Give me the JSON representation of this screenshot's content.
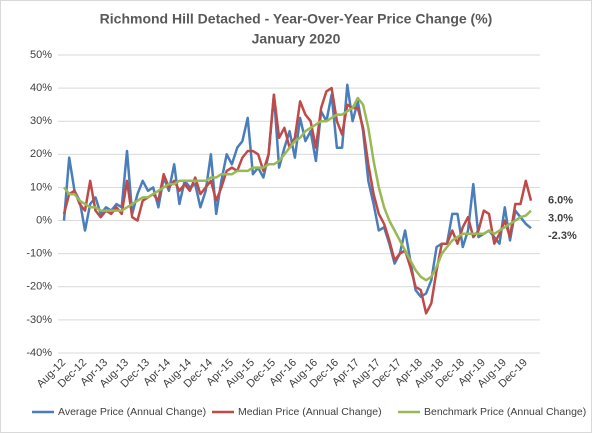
{
  "chart_data": {
    "type": "line",
    "title": "Richmond Hill Detached - Year-Over-Year Price Change (%)",
    "subtitle": "January 2020",
    "categories": [
      "Aug-12",
      null,
      null,
      null,
      "Dec-12",
      null,
      null,
      null,
      "Apr-13",
      null,
      null,
      null,
      "Aug-13",
      null,
      null,
      null,
      "Dec-13",
      null,
      null,
      null,
      "Apr-14",
      null,
      null,
      null,
      "Aug-14",
      null,
      null,
      null,
      "Dec-14",
      null,
      null,
      null,
      "Apr-15",
      null,
      null,
      null,
      "Aug-15",
      null,
      null,
      null,
      "Dec-15",
      null,
      null,
      null,
      "Apr-16",
      null,
      null,
      null,
      "Aug-16",
      null,
      null,
      null,
      "Dec-16",
      null,
      null,
      null,
      "Apr-17",
      null,
      null,
      null,
      "Aug-17",
      null,
      null,
      null,
      "Dec-17",
      null,
      null,
      null,
      "Apr-18",
      null,
      null,
      null,
      "Aug-18",
      null,
      null,
      null,
      "Dec-18",
      null,
      null,
      null,
      "Apr-19",
      null,
      null,
      null,
      "Aug-19",
      null,
      null,
      null,
      "Dec-19",
      null
    ],
    "series": [
      {
        "name": "Average Price (Annual Change)",
        "color": "#4a7ebb",
        "values": [
          0,
          19,
          9,
          6,
          -3,
          5,
          7,
          2,
          4,
          3,
          5,
          4,
          21,
          2,
          8,
          12,
          9,
          10,
          4,
          13,
          9,
          17,
          5,
          12,
          10,
          11,
          4,
          9,
          20,
          2,
          12,
          20,
          17,
          22,
          24,
          31,
          14,
          16,
          13,
          20,
          38,
          16,
          22,
          27,
          19,
          31,
          24,
          27,
          18,
          33,
          30,
          38,
          22,
          22,
          41,
          30,
          36,
          27,
          12,
          5,
          -3,
          -2,
          -7,
          -13,
          -10,
          -3,
          -12,
          -21,
          -23,
          -22,
          -18,
          -8,
          -7,
          -7,
          2,
          2,
          -8,
          -3,
          11,
          -5,
          -4,
          -3,
          -5,
          -7,
          4,
          -6,
          3,
          1,
          -1,
          -2.3
        ],
        "value_labels": [
          null,
          null,
          null,
          null,
          null,
          null,
          null,
          null,
          null,
          null,
          null,
          null,
          null,
          null,
          null,
          null,
          null,
          null,
          null,
          null,
          null,
          null,
          null,
          null,
          null,
          null,
          null,
          null,
          null,
          null,
          null,
          null,
          null,
          null,
          null,
          null,
          null,
          null,
          null,
          null,
          null,
          null,
          null,
          null,
          null,
          null,
          null,
          null,
          null,
          null,
          null,
          null,
          null,
          null,
          null,
          null,
          null,
          null,
          null,
          null,
          null,
          null,
          null,
          null,
          null,
          null,
          null,
          null,
          null,
          null,
          null,
          null,
          null,
          null,
          null,
          null,
          null,
          null,
          null,
          null,
          null,
          null,
          null,
          null,
          null,
          null,
          null,
          null,
          null,
          "-2.3%"
        ]
      },
      {
        "name": "Median Price (Annual Change)",
        "color": "#be4b48",
        "values": [
          2,
          8,
          9,
          5,
          3,
          12,
          3,
          1,
          3,
          2,
          4,
          2,
          12,
          1,
          0,
          6,
          7,
          8,
          6,
          14,
          10,
          12,
          9,
          11,
          9,
          13,
          8,
          10,
          12,
          6,
          10,
          15,
          16,
          15,
          19,
          21,
          21,
          20,
          15,
          20,
          38,
          25,
          28,
          22,
          25,
          36,
          32,
          30,
          22,
          34,
          39,
          40,
          30,
          26,
          35,
          34,
          34,
          28,
          17,
          8,
          2,
          -1,
          -6,
          -12,
          -10,
          -9,
          -14,
          -20,
          -21,
          -28,
          -25,
          -15,
          -7,
          -7,
          -3,
          -7,
          -2,
          1,
          -5,
          -3,
          3,
          2,
          -7,
          -4,
          0,
          -5,
          5,
          5,
          12,
          6.0
        ],
        "value_labels": [
          null,
          null,
          null,
          null,
          null,
          null,
          null,
          null,
          null,
          null,
          null,
          null,
          null,
          null,
          null,
          null,
          null,
          null,
          null,
          null,
          null,
          null,
          null,
          null,
          null,
          null,
          null,
          null,
          null,
          null,
          null,
          null,
          null,
          null,
          null,
          null,
          null,
          null,
          null,
          null,
          null,
          null,
          null,
          null,
          null,
          null,
          null,
          null,
          null,
          null,
          null,
          null,
          null,
          null,
          null,
          null,
          null,
          null,
          null,
          null,
          null,
          null,
          null,
          null,
          null,
          null,
          null,
          null,
          null,
          null,
          null,
          null,
          null,
          null,
          null,
          null,
          null,
          null,
          null,
          null,
          null,
          null,
          null,
          null,
          null,
          null,
          null,
          null,
          null,
          "6.0%"
        ]
      },
      {
        "name": "Benchmark Price (Annual Change)",
        "color": "#98b954",
        "values": [
          10,
          8,
          8,
          6,
          5,
          4,
          4,
          3,
          3,
          3,
          3,
          3,
          4,
          5,
          6,
          7,
          7,
          8,
          9,
          10,
          11,
          11,
          12,
          12,
          12,
          12,
          12,
          12,
          13,
          13,
          14,
          14,
          14,
          15,
          15,
          15,
          16,
          16,
          16,
          17,
          17,
          18,
          20,
          22,
          24,
          25,
          27,
          28,
          29,
          30,
          30,
          31,
          32,
          32,
          33,
          34,
          37,
          35,
          28,
          18,
          10,
          4,
          0,
          -3,
          -6,
          -9,
          -12,
          -15,
          -17,
          -18,
          -17,
          -14,
          -10,
          -8,
          -6,
          -5,
          -4,
          -4,
          -4,
          -4,
          -4,
          -3,
          -4,
          -3,
          -2,
          -1,
          0,
          1,
          1.5,
          3.0
        ],
        "value_labels": [
          null,
          null,
          null,
          null,
          null,
          null,
          null,
          null,
          null,
          null,
          null,
          null,
          null,
          null,
          null,
          null,
          null,
          null,
          null,
          null,
          null,
          null,
          null,
          null,
          null,
          null,
          null,
          null,
          null,
          null,
          null,
          null,
          null,
          null,
          null,
          null,
          null,
          null,
          null,
          null,
          null,
          null,
          null,
          null,
          null,
          null,
          null,
          null,
          null,
          null,
          null,
          null,
          null,
          null,
          null,
          null,
          null,
          null,
          null,
          null,
          null,
          null,
          null,
          null,
          null,
          null,
          null,
          null,
          null,
          null,
          null,
          null,
          null,
          null,
          null,
          null,
          null,
          null,
          null,
          null,
          null,
          null,
          null,
          null,
          null,
          null,
          null,
          null,
          null,
          "3.0%"
        ]
      }
    ],
    "ylim": [
      -40,
      50
    ],
    "yticks": [
      {
        "value": -40,
        "label": "-40%"
      },
      {
        "value": -30,
        "label": "-30%"
      },
      {
        "value": -20,
        "label": "-20%"
      },
      {
        "value": -10,
        "label": "-10%"
      },
      {
        "value": 0,
        "label": "0%"
      },
      {
        "value": 10,
        "label": "10%"
      },
      {
        "value": 20,
        "label": "20%"
      },
      {
        "value": 30,
        "label": "30%"
      },
      {
        "value": 40,
        "label": "40%"
      },
      {
        "value": 50,
        "label": "50%"
      }
    ],
    "grid": true,
    "legend": "bottom"
  }
}
